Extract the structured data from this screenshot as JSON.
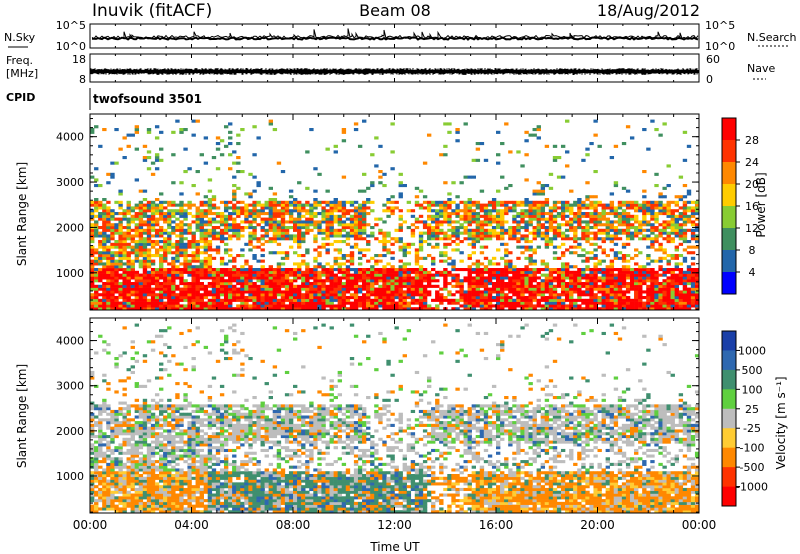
{
  "header": {
    "station": "Inuvik (fitACF)",
    "beam": "Beam 08",
    "date": "18/Aug/2012"
  },
  "left_labels": {
    "nsky": "N.Sky",
    "freq_line1": "Freq.",
    "freq_line2": "[MHz]",
    "cpid": "CPID"
  },
  "right_labels": {
    "nsearch": "N.Search",
    "nave": "Nave"
  },
  "cpid_name": "twofsound 3501",
  "chart_data": [
    {
      "type": "line",
      "panel": "noise",
      "series": [
        {
          "name": "N.Sky"
        },
        {
          "name": "N.Search"
        }
      ],
      "y_left_ticks": [
        "10^5",
        "10^0"
      ],
      "y_right_ticks": [
        "10^5",
        "10^0"
      ],
      "scale": "log"
    },
    {
      "type": "line",
      "panel": "frequency_nave",
      "y_left_ticks": [
        "18",
        "8"
      ],
      "y_right_ticks": [
        "60",
        "0"
      ],
      "frequency_mhz_approx": 11
    },
    {
      "type": "heatmap",
      "panel": "power",
      "ylabel": "Slant Range [km]",
      "yticks": [
        1000,
        2000,
        3000,
        4000
      ],
      "ylim": [
        180,
        4500
      ],
      "x_ticks": [
        "00:00",
        "04:00",
        "08:00",
        "12:00",
        "16:00",
        "20:00",
        "00:00"
      ],
      "colorbar": {
        "label": "Power [dB]",
        "ticks": [
          "28",
          "24",
          "20",
          "16",
          "12",
          "8",
          "4"
        ],
        "colors": [
          "#ff0000",
          "#ff3300",
          "#ff8800",
          "#ffcc00",
          "#88cc33",
          "#3f8f5f",
          "#2266aa",
          "#0000ff"
        ]
      },
      "bands": [
        {
          "name": "low",
          "range_km": [
            200,
            1100
          ],
          "dominant": "red"
        },
        {
          "name": "mid",
          "range_km": [
            1700,
            2500
          ],
          "dominant": "orange-red"
        },
        {
          "name": "high",
          "range_km": [
            3000,
            4300
          ],
          "dominant": "scattered"
        }
      ]
    },
    {
      "type": "heatmap",
      "panel": "velocity",
      "ylabel": "Slant Range [km]",
      "xlabel": "Time UT",
      "yticks": [
        1000,
        2000,
        3000,
        4000
      ],
      "ylim": [
        180,
        4500
      ],
      "x_ticks": [
        "00:00",
        "04:00",
        "08:00",
        "12:00",
        "16:00",
        "20:00",
        "00:00"
      ],
      "colorbar": {
        "label": "Velocity [m s⁻¹]",
        "ticks": [
          "1000",
          "500",
          "100",
          "25",
          "-25",
          "-100",
          "-500",
          "-1000"
        ],
        "colors": [
          "#1a3fa8",
          "#2e68b0",
          "#3f8f6f",
          "#5fcf3f",
          "#bdbdbd",
          "#ffcc33",
          "#ff8800",
          "#ff3300",
          "#ff0000"
        ]
      },
      "bands": [
        {
          "name": "low",
          "range_km": [
            200,
            1100
          ],
          "dominant": "orange-green"
        },
        {
          "name": "mid",
          "range_km": [
            1700,
            2500
          ],
          "dominant": "grey"
        },
        {
          "name": "high",
          "range_km": [
            3000,
            4300
          ],
          "dominant": "scattered"
        }
      ]
    }
  ]
}
